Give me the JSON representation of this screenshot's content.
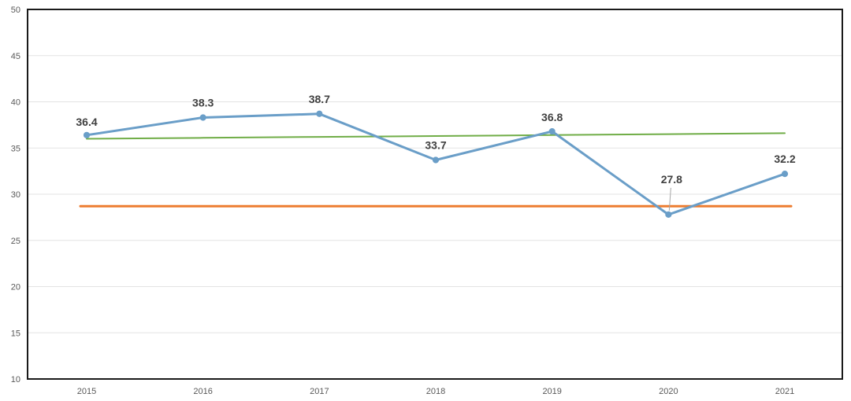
{
  "chart_data": {
    "type": "line",
    "title": "",
    "xlabel": "",
    "ylabel": "",
    "categories": [
      "2015",
      "2016",
      "2017",
      "2018",
      "2019",
      "2020",
      "2021"
    ],
    "ylim": [
      10,
      50
    ],
    "yticks": [
      10,
      15,
      20,
      25,
      30,
      35,
      40,
      45,
      50
    ],
    "grid": true,
    "legend": "none",
    "series": [
      {
        "values": [
          36.4,
          38.3,
          38.7,
          33.7,
          36.8,
          27.8,
          32.2
        ],
        "color": "#6a9ec8",
        "markers": true,
        "data_labels": [
          "36.4",
          "38.3",
          "38.7",
          "33.7",
          "36.8",
          "27.8",
          "32.2"
        ]
      },
      {
        "values": [
          36.0,
          36.1,
          36.2,
          36.3,
          36.4,
          36.5,
          36.6
        ],
        "color": "#70ad47",
        "markers": false
      },
      {
        "values": [
          28.7,
          28.7,
          28.7,
          28.7,
          28.7,
          28.7,
          28.7
        ],
        "color": "#ed7d31",
        "markers": false
      }
    ]
  }
}
